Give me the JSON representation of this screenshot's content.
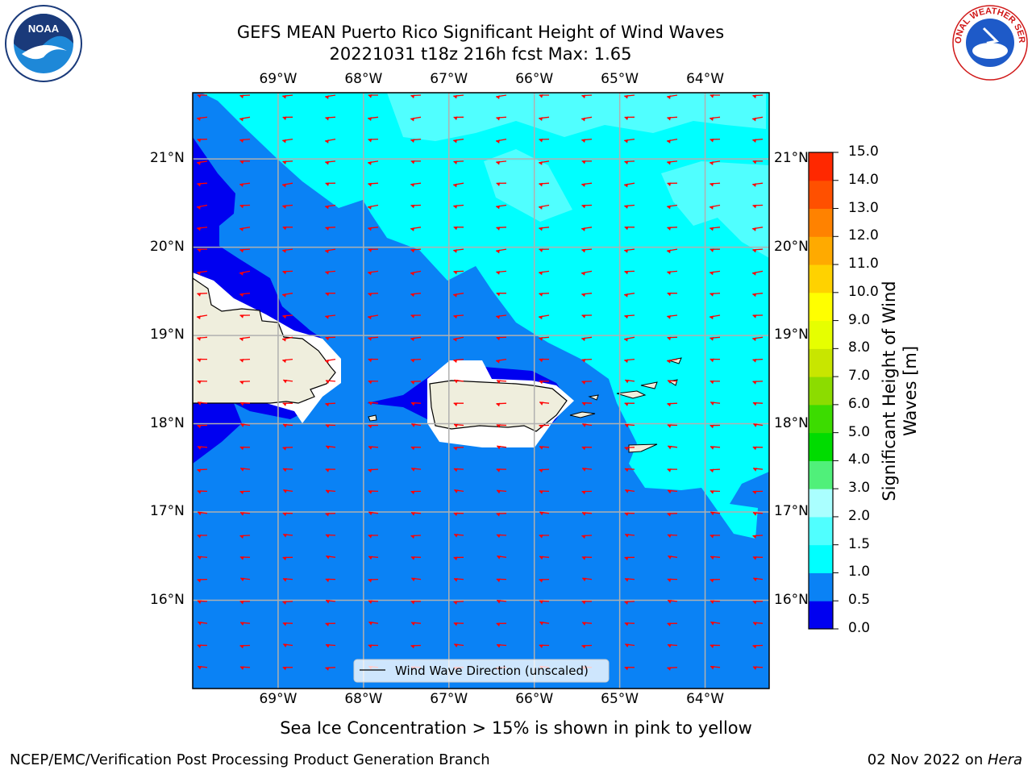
{
  "title": {
    "line1": "GEFS MEAN Puerto Rico Significant Height of Wind Waves",
    "line2": "20221031 t18z 216h fcst   Max: 1.65"
  },
  "map": {
    "lon_range": [
      -70.0,
      -63.25
    ],
    "lat_range": [
      15.0,
      21.75
    ],
    "lon_ticks": [
      "69°W",
      "68°W",
      "67°W",
      "66°W",
      "65°W",
      "64°W"
    ],
    "lat_ticks": [
      "21°N",
      "20°N",
      "19°N",
      "18°N",
      "17°N",
      "16°N"
    ],
    "gridlines": true,
    "ocean_colors": {
      "band_0_0_5": "#0000f0",
      "band_0_5_1": "#0a82f5",
      "band_1_1_5": "#00ffff",
      "band_1_5_2": "#50ffff",
      "land": "#efeedd",
      "missing": "#ffffff"
    },
    "arrow_color": "#ff0000",
    "legend": {
      "label": "Wind Wave Direction (unscaled)",
      "placement": "bottom-center"
    }
  },
  "colorbar": {
    "label_line1": "Significant Height of Wind",
    "label_line2": "Waves [m]",
    "ticks": [
      "0.0",
      "0.5",
      "1.0",
      "1.5",
      "2.0",
      "3.0",
      "4.0",
      "5.0",
      "6.0",
      "7.0",
      "8.0",
      "9.0",
      "10.0",
      "11.0",
      "12.0",
      "13.0",
      "14.0",
      "15.0"
    ],
    "colors": [
      "#0000f0",
      "#0a82f5",
      "#00ffff",
      "#50ffff",
      "#aaffff",
      "#50f07a",
      "#00dc00",
      "#3cdc00",
      "#8cdc00",
      "#c8e600",
      "#e6ff00",
      "#ffff00",
      "#ffd200",
      "#ffaa00",
      "#ff8200",
      "#ff5000",
      "#ff2800",
      "#ff0000"
    ]
  },
  "subnote": "Sea Ice Concentration > 15% is shown in pink to yellow",
  "footer": {
    "left": "NCEP/EMC/Verification Post Processing Product Generation Branch",
    "right_date": "02 Nov 2022 on ",
    "right_machine": "Hera"
  },
  "logos": {
    "noaa_text": "NOAA",
    "nws_text": "NATIONAL WEATHER SERVICE"
  }
}
